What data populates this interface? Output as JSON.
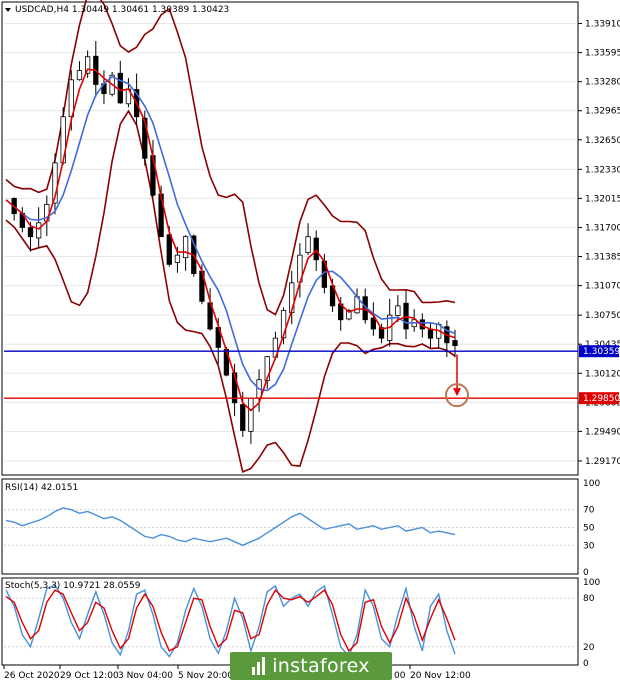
{
  "header": {
    "symbol_line": "USDCAD,H4 1.30449 1.30461 1.30389 1.30423"
  },
  "panes": {
    "rsi_label": "RSI(14) 42.0151",
    "stoch_label": "Stoch(5,3,3) 10.9721 28.0559"
  },
  "x_axis_labels": [
    "26 Oct 2020",
    "29 Oct 12:00",
    "3 Nov 04:00",
    "5 Nov 20:00",
    "20 Nov 12:00"
  ],
  "x_axis_partial_label": "00",
  "chart_data": [
    {
      "type": "candlestick",
      "title": "USDCAD,H4",
      "last_bar": {
        "open": 1.30449,
        "high": 1.30461,
        "low": 1.30389,
        "close": 1.30423
      },
      "price_ticks": [
        "1.33910",
        "1.33595",
        "1.33280",
        "1.32965",
        "1.32650",
        "1.32330",
        "1.32015",
        "1.31700",
        "1.31385",
        "1.31070",
        "1.30750",
        "1.30435",
        "1.30120",
        "1.29805",
        "1.29490",
        "1.29170"
      ],
      "ylim": [
        1.2905,
        1.341
      ],
      "price_series_approx": [
        1.32,
        1.3185,
        1.317,
        1.316,
        1.3175,
        1.3195,
        1.324,
        1.329,
        1.333,
        1.334,
        1.3355,
        1.3325,
        1.3315,
        1.3335,
        1.3305,
        1.332,
        1.329,
        1.3245,
        1.3205,
        1.316,
        1.313,
        1.314,
        1.316,
        1.312,
        1.309,
        1.306,
        1.304,
        1.301,
        1.298,
        1.295,
        1.2985,
        1.3005,
        1.303,
        1.305,
        1.308,
        1.311,
        1.314,
        1.316,
        1.3135,
        1.3105,
        1.3085,
        1.307,
        1.308,
        1.3095,
        1.307,
        1.306,
        1.305,
        1.3075,
        1.3085,
        1.306,
        1.307,
        1.306,
        1.305,
        1.3065,
        1.3045,
        1.3042
      ],
      "horizontal_levels": [
        {
          "label": "1.30359",
          "value": 1.30359,
          "color": "#0000c8"
        },
        {
          "label": "1.29850",
          "value": 1.2985,
          "color": "#e00000"
        }
      ],
      "annotation": "downward target arrow toward 1.29850",
      "indicators": [
        "Bollinger Bands",
        "moving averages"
      ]
    },
    {
      "type": "line",
      "title": "RSI(14) 42.0151",
      "ylim": [
        0,
        100
      ],
      "ticks": [
        "100",
        "70",
        "50",
        "30",
        "0"
      ],
      "series": [
        {
          "name": "RSI(14)",
          "values": [
            58,
            56,
            52,
            55,
            58,
            62,
            68,
            72,
            70,
            66,
            68,
            64,
            60,
            62,
            58,
            52,
            46,
            40,
            38,
            42,
            40,
            36,
            34,
            38,
            36,
            34,
            36,
            38,
            34,
            30,
            34,
            38,
            44,
            50,
            56,
            62,
            66,
            60,
            54,
            48,
            50,
            52,
            54,
            48,
            50,
            52,
            48,
            50,
            52,
            46,
            48,
            50,
            44,
            46,
            44,
            42
          ]
        }
      ]
    },
    {
      "type": "line",
      "title": "Stoch(5,3,3) 10.9721 28.0559",
      "ylim": [
        0,
        100
      ],
      "ticks": [
        "100",
        "80",
        "20",
        "0"
      ],
      "series": [
        {
          "name": "Stoch %K",
          "values": [
            90,
            70,
            35,
            20,
            55,
            92,
            96,
            80,
            50,
            30,
            60,
            88,
            60,
            25,
            10,
            40,
            85,
            90,
            60,
            20,
            8,
            25,
            65,
            92,
            70,
            30,
            12,
            40,
            80,
            55,
            15,
            45,
            88,
            95,
            70,
            80,
            85,
            70,
            88,
            95,
            60,
            20,
            8,
            35,
            90,
            70,
            30,
            20,
            60,
            92,
            45,
            15,
            70,
            85,
            40,
            11
          ]
        },
        {
          "name": "Stoch %D",
          "values": [
            82,
            75,
            50,
            30,
            40,
            75,
            90,
            85,
            62,
            40,
            50,
            75,
            68,
            40,
            18,
            30,
            68,
            85,
            70,
            38,
            15,
            20,
            50,
            80,
            78,
            45,
            20,
            30,
            65,
            62,
            30,
            35,
            72,
            90,
            80,
            78,
            82,
            75,
            82,
            90,
            72,
            35,
            15,
            25,
            75,
            78,
            45,
            25,
            45,
            80,
            58,
            28,
            55,
            78,
            55,
            28
          ]
        }
      ]
    }
  ],
  "watermark": "instaforex"
}
